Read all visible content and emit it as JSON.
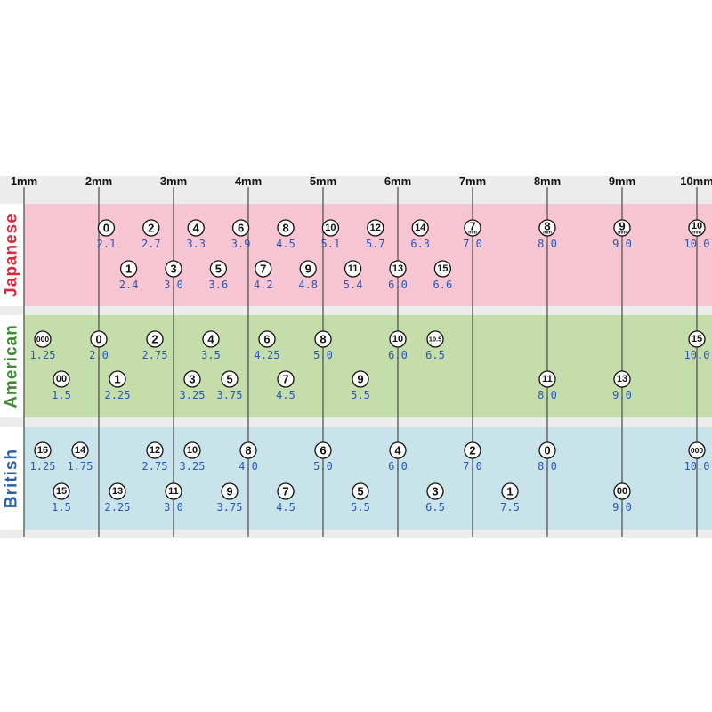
{
  "chart_data": {
    "type": "scatter",
    "x_axis": {
      "range": [
        1,
        10
      ],
      "ticks": [
        1,
        2,
        3,
        4,
        5,
        6,
        7,
        8,
        9,
        10
      ],
      "tick_labels": [
        "1mm",
        "2mm",
        "3mm",
        "4mm",
        "5mm",
        "6mm",
        "7mm",
        "8mm",
        "9mm",
        "10mm"
      ]
    },
    "series": [
      {
        "name": "Japanese",
        "color": "#f8c6d2",
        "title_color": "#d9283a",
        "row1": [
          {
            "size": "0",
            "value": "2.1",
            "x": 2.1
          },
          {
            "size": "2",
            "value": "2.7",
            "x": 2.7
          },
          {
            "size": "4",
            "value": "3.3",
            "x": 3.3
          },
          {
            "size": "6",
            "value": "3.9",
            "x": 3.9
          },
          {
            "size": "8",
            "value": "4.5",
            "x": 4.5
          },
          {
            "size": "10",
            "value": "5.1",
            "x": 5.1
          },
          {
            "size": "12",
            "value": "5.7",
            "x": 5.7
          },
          {
            "size": "14",
            "value": "6.3",
            "x": 6.3
          },
          {
            "size": "7",
            "value": "7.0",
            "x": 7.0,
            "unit": "mm"
          },
          {
            "size": "8",
            "value": "8.0",
            "x": 8.0,
            "unit": "mm"
          },
          {
            "size": "9",
            "value": "9.0",
            "x": 9.0,
            "unit": "mm"
          },
          {
            "size": "10",
            "value": "10.0",
            "x": 10.0,
            "unit": "mm"
          }
        ],
        "row2": [
          {
            "size": "1",
            "value": "2.4",
            "x": 2.4
          },
          {
            "size": "3",
            "value": "3.0",
            "x": 3.0
          },
          {
            "size": "5",
            "value": "3.6",
            "x": 3.6
          },
          {
            "size": "7",
            "value": "4.2",
            "x": 4.2
          },
          {
            "size": "9",
            "value": "4.8",
            "x": 4.8
          },
          {
            "size": "11",
            "value": "5.4",
            "x": 5.4
          },
          {
            "size": "13",
            "value": "6.0",
            "x": 6.0
          },
          {
            "size": "15",
            "value": "6.6",
            "x": 6.6
          }
        ]
      },
      {
        "name": "American",
        "color": "#c5ddaa",
        "title_color": "#3a8a2e",
        "row1": [
          {
            "size": "000",
            "value": "1.25",
            "x": 1.25
          },
          {
            "size": "0",
            "value": "2.0",
            "x": 2.0
          },
          {
            "size": "2",
            "value": "2.75",
            "x": 2.75
          },
          {
            "size": "4",
            "value": "3.5",
            "x": 3.5
          },
          {
            "size": "6",
            "value": "4.25",
            "x": 4.25
          },
          {
            "size": "8",
            "value": "5.0",
            "x": 5.0
          },
          {
            "size": "10",
            "value": "6.0",
            "x": 6.0
          },
          {
            "size": "10.5",
            "value": "6.5",
            "x": 6.5
          },
          {
            "size": "15",
            "value": "10.0",
            "x": 10.0
          }
        ],
        "row2": [
          {
            "size": "00",
            "value": "1.5",
            "x": 1.5
          },
          {
            "size": "1",
            "value": "2.25",
            "x": 2.25
          },
          {
            "size": "3",
            "value": "3.25",
            "x": 3.25
          },
          {
            "size": "5",
            "value": "3.75",
            "x": 3.75
          },
          {
            "size": "7",
            "value": "4.5",
            "x": 4.5
          },
          {
            "size": "9",
            "value": "5.5",
            "x": 5.5
          },
          {
            "size": "11",
            "value": "8.0",
            "x": 8.0
          },
          {
            "size": "13",
            "value": "9.0",
            "x": 9.0
          }
        ]
      },
      {
        "name": "British",
        "color": "#c8e3ea",
        "title_color": "#2a5fa6",
        "row1": [
          {
            "size": "16",
            "value": "1.25",
            "x": 1.25
          },
          {
            "size": "14",
            "value": "1.75",
            "x": 1.75
          },
          {
            "size": "12",
            "value": "2.75",
            "x": 2.75
          },
          {
            "size": "10",
            "value": "3.25",
            "x": 3.25
          },
          {
            "size": "8",
            "value": "4.0",
            "x": 4.0
          },
          {
            "size": "6",
            "value": "5.0",
            "x": 5.0
          },
          {
            "size": "4",
            "value": "6.0",
            "x": 6.0
          },
          {
            "size": "2",
            "value": "7.0",
            "x": 7.0
          },
          {
            "size": "0",
            "value": "8.0",
            "x": 8.0
          },
          {
            "size": "000",
            "value": "10.0",
            "x": 10.0
          }
        ],
        "row2": [
          {
            "size": "15",
            "value": "1.5",
            "x": 1.5
          },
          {
            "size": "13",
            "value": "2.25",
            "x": 2.25
          },
          {
            "size": "11",
            "value": "3.0",
            "x": 3.0
          },
          {
            "size": "9",
            "value": "3.75",
            "x": 3.75
          },
          {
            "size": "7",
            "value": "4.5",
            "x": 4.5
          },
          {
            "size": "5",
            "value": "5.5",
            "x": 5.5
          },
          {
            "size": "3",
            "value": "6.5",
            "x": 6.5
          },
          {
            "size": "1",
            "value": "7.5",
            "x": 7.5
          },
          {
            "size": "00",
            "value": "9.0",
            "x": 9.0
          }
        ]
      }
    ]
  }
}
